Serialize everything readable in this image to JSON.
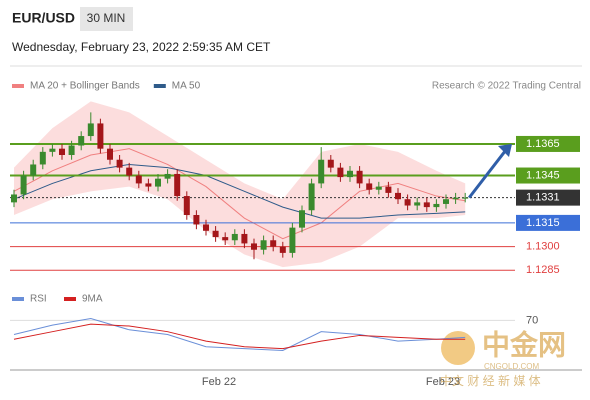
{
  "header": {
    "symbol": "EUR/USD",
    "interval": "30 MIN",
    "timestamp": "Wednesday, February 23, 2022 2:59:35 AM CET"
  },
  "chart_data": {
    "type": "candlestick",
    "legend": [
      {
        "name": "MA 20 + Bollinger Bands",
        "color": "#f08080"
      },
      {
        "name": "MA 50",
        "color": "#2f5b8a"
      }
    ],
    "credit": "Research © 2022 Trading Central",
    "up_color": "#3a8a2e",
    "down_color": "#a4161a",
    "open": [
      1.1328,
      1.1333,
      1.1345,
      1.1352,
      1.136,
      1.1362,
      1.1358,
      1.1364,
      1.137,
      1.1378,
      1.1362,
      1.1355,
      1.135,
      1.1345,
      1.134,
      1.1338,
      1.1343,
      1.1346,
      1.1332,
      1.132,
      1.1314,
      1.131,
      1.1306,
      1.1304,
      1.1308,
      1.1302,
      1.1298,
      1.1304,
      1.13,
      1.1296,
      1.1312,
      1.1323,
      1.134,
      1.1355,
      1.135,
      1.1344,
      1.1348,
      1.134,
      1.1336,
      1.1338,
      1.1334,
      1.133,
      1.1326,
      1.1328,
      1.1325,
      1.1327,
      1.133,
      1.1331
    ],
    "high": [
      1.1336,
      1.1348,
      1.1355,
      1.1363,
      1.1365,
      1.1365,
      1.1367,
      1.1373,
      1.1385,
      1.1381,
      1.1365,
      1.1358,
      1.1353,
      1.1348,
      1.1343,
      1.1346,
      1.1349,
      1.1349,
      1.1335,
      1.1323,
      1.1317,
      1.1313,
      1.1309,
      1.1311,
      1.1311,
      1.1305,
      1.1307,
      1.1307,
      1.1303,
      1.1315,
      1.1326,
      1.1343,
      1.1363,
      1.1358,
      1.1353,
      1.1351,
      1.1351,
      1.1343,
      1.1341,
      1.1341,
      1.1337,
      1.1333,
      1.1331,
      1.1331,
      1.133,
      1.1333,
      1.1334,
      1.1334
    ],
    "low": [
      1.1325,
      1.133,
      1.1342,
      1.1349,
      1.1357,
      1.1355,
      1.1355,
      1.1361,
      1.1367,
      1.1359,
      1.1352,
      1.1347,
      1.1342,
      1.1337,
      1.1335,
      1.1335,
      1.134,
      1.1329,
      1.1317,
      1.1311,
      1.1307,
      1.1303,
      1.1301,
      1.1301,
      1.1299,
      1.1292,
      1.1295,
      1.1297,
      1.1293,
      1.1293,
      1.1309,
      1.132,
      1.1337,
      1.1347,
      1.1341,
      1.1341,
      1.1337,
      1.1333,
      1.1333,
      1.1331,
      1.1327,
      1.1323,
      1.1323,
      1.1322,
      1.1322,
      1.1324,
      1.1327,
      1.1328
    ],
    "close": [
      1.1333,
      1.1345,
      1.1352,
      1.136,
      1.1362,
      1.1358,
      1.1364,
      1.137,
      1.1378,
      1.1362,
      1.1355,
      1.135,
      1.1345,
      1.134,
      1.1338,
      1.1343,
      1.1346,
      1.1332,
      1.132,
      1.1314,
      1.131,
      1.1306,
      1.1304,
      1.1308,
      1.1302,
      1.1298,
      1.1304,
      1.13,
      1.1296,
      1.1312,
      1.1323,
      1.134,
      1.1355,
      1.135,
      1.1344,
      1.1348,
      1.134,
      1.1336,
      1.1338,
      1.1334,
      1.133,
      1.1326,
      1.1328,
      1.1325,
      1.1327,
      1.133,
      1.1331,
      1.1331
    ],
    "ma_x": [
      0,
      4,
      8,
      12,
      16,
      20,
      24,
      28,
      32,
      36,
      40,
      44,
      47
    ],
    "ma20": [
      1.1335,
      1.1348,
      1.1358,
      1.1362,
      1.1352,
      1.1338,
      1.1318,
      1.1305,
      1.1315,
      1.1335,
      1.134,
      1.1332,
      1.1329
    ],
    "ma50": [
      1.133,
      1.134,
      1.1348,
      1.1352,
      1.135,
      1.1345,
      1.1335,
      1.1325,
      1.1318,
      1.1318,
      1.132,
      1.1321,
      1.1322
    ],
    "bb_upper": [
      1.135,
      1.1375,
      1.1392,
      1.1385,
      1.137,
      1.1355,
      1.134,
      1.133,
      1.136,
      1.1365,
      1.136,
      1.1348,
      1.134
    ],
    "bb_lower": [
      1.132,
      1.133,
      1.1335,
      1.1338,
      1.133,
      1.131,
      1.1295,
      1.1287,
      1.129,
      1.13,
      1.1318,
      1.1318,
      1.132
    ],
    "ylim": [
      1.1282,
      1.1396
    ],
    "levels": [
      {
        "value": 1.1365,
        "color": "#5a9e1e",
        "box": true
      },
      {
        "value": 1.1345,
        "color": "#5a9e1e",
        "box": true
      },
      {
        "value": 1.1331,
        "color": "#333333",
        "box": true
      },
      {
        "value": 1.1315,
        "color": "#3b6fd8",
        "box": true
      },
      {
        "value": 1.13,
        "label": "1.1300",
        "color": "#e04040",
        "box": false
      },
      {
        "value": 1.1285,
        "color": "#e04040",
        "box": false
      }
    ],
    "rsi_legend": [
      {
        "name": "RSI",
        "color": "#6a8fd8"
      },
      {
        "name": "9MA",
        "color": "#d42020"
      }
    ],
    "rsi": [
      55,
      65,
      72,
      60,
      55,
      42,
      40,
      38,
      58,
      55,
      48,
      50,
      52
    ],
    "rsi_ma": [
      50,
      58,
      66,
      64,
      58,
      48,
      42,
      40,
      48,
      54,
      52,
      50,
      50
    ],
    "rsi_ylim": [
      30,
      80
    ],
    "rsi_yticks": [
      70
    ],
    "x_labels": [
      "Feb 22",
      "Feb 23"
    ]
  },
  "watermark": {
    "brand": "中金网",
    "site": "CNGOLD.COM",
    "tagline": "中文 财 经 新 媒 体"
  }
}
